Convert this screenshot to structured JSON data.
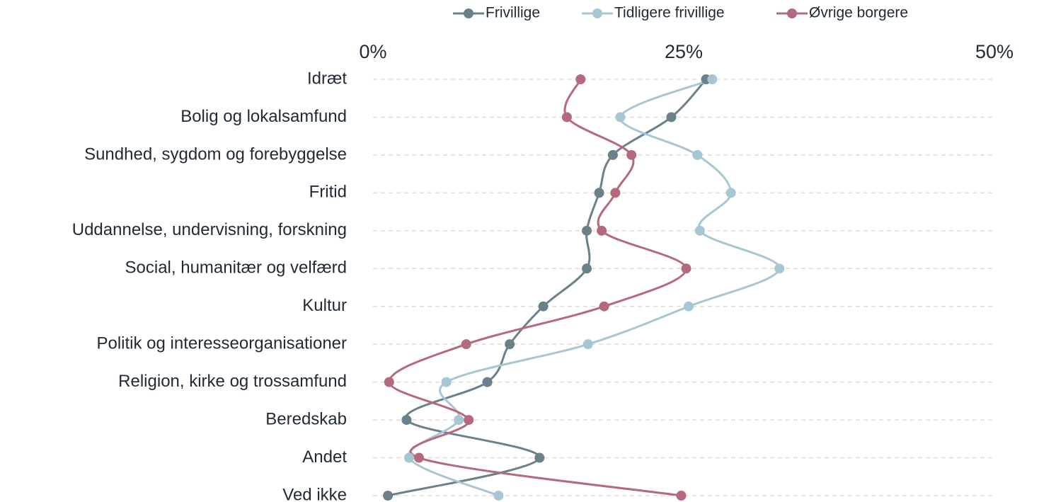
{
  "chart_data": {
    "type": "line",
    "categories": [
      "Idræt",
      "Bolig og lokalsamfund",
      "Sundhed, sygdom og forebyggelse",
      "Fritid",
      "Uddannelse, undervisning, forskning",
      "Social, humanitær og velfærd",
      "Kultur",
      "Politik og interesseorganisationer",
      "Religion, kirke og trossamfund",
      "Beredskab",
      "Andet",
      "Ved ikke"
    ],
    "series": [
      {
        "name": "Frivillige",
        "color": "#6b818a",
        "values": [
          26.8,
          24.0,
          19.3,
          18.2,
          17.2,
          17.2,
          13.7,
          11.0,
          9.2,
          2.7,
          13.4,
          1.2
        ]
      },
      {
        "name": "Tidligere frivillige",
        "color": "#a7c6d4",
        "values": [
          27.3,
          19.9,
          26.1,
          28.8,
          26.3,
          32.7,
          25.4,
          17.3,
          5.9,
          6.9,
          2.9,
          10.1
        ]
      },
      {
        "name": "Øvrige borgere",
        "color": "#b5697c",
        "values": [
          16.7,
          15.6,
          20.8,
          19.5,
          18.4,
          25.2,
          18.6,
          7.5,
          1.3,
          7.7,
          3.7,
          24.8
        ]
      }
    ],
    "xlim": [
      0,
      50
    ],
    "xticks": [
      {
        "value": 0,
        "label": "0%"
      },
      {
        "value": 25,
        "label": "25%"
      },
      {
        "value": 50,
        "label": "50%"
      }
    ],
    "grid": true,
    "legend": "top"
  }
}
